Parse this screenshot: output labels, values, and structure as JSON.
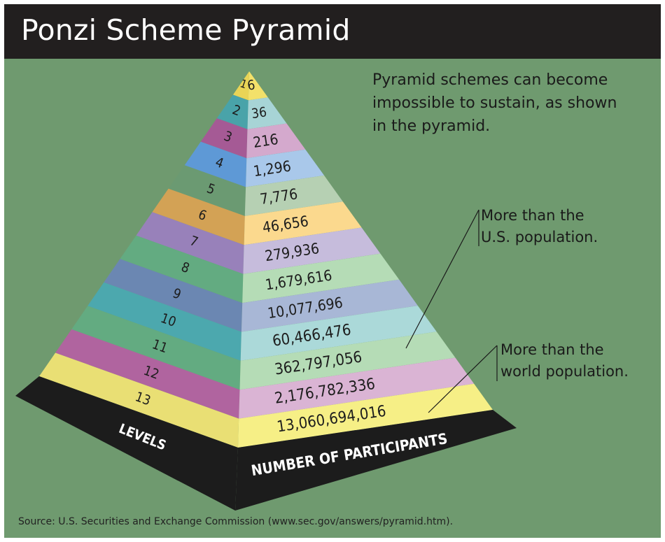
{
  "title": "Ponzi Scheme Pyramid",
  "intro_lines": [
    "Pyramid schemes can become",
    "impossible to sustain, as shown",
    "in the pyramid."
  ],
  "callouts": {
    "us_population": [
      "More than the",
      "U.S. population."
    ],
    "world_population": [
      "More than the",
      "world population."
    ]
  },
  "axis_labels": {
    "levels": "LEVELS",
    "participants": "NUMBER OF PARTICIPANTS"
  },
  "pyramid": {
    "rows": [
      {
        "level": "1",
        "participants": "6",
        "left_color": "#e9d456",
        "right_color": "#f3e16a"
      },
      {
        "level": "2",
        "participants": "36",
        "left_color": "#49a3a9",
        "right_color": "#a7d4d6"
      },
      {
        "level": "3",
        "participants": "216",
        "left_color": "#a55a95",
        "right_color": "#d4a9cd"
      },
      {
        "level": "4",
        "participants": "1,296",
        "left_color": "#5e99d6",
        "right_color": "#a9c8ea"
      },
      {
        "level": "5",
        "participants": "7,776",
        "left_color": "#6b9a72",
        "right_color": "#b6d0b3"
      },
      {
        "level": "6",
        "participants": "46,656",
        "left_color": "#d3a255",
        "right_color": "#fbd98e"
      },
      {
        "level": "7",
        "participants": "279,936",
        "left_color": "#9881ba",
        "right_color": "#c6bcdc"
      },
      {
        "level": "8",
        "participants": "1,679,616",
        "left_color": "#63ab81",
        "right_color": "#b5dcb6"
      },
      {
        "level": "9",
        "participants": "10,077,696",
        "left_color": "#6b87b2",
        "right_color": "#a8b7d6"
      },
      {
        "level": "10",
        "participants": "60,466,476",
        "left_color": "#4ca8ae",
        "right_color": "#abd9d9"
      },
      {
        "level": "11",
        "participants": "362,797,056",
        "left_color": "#63ab81",
        "right_color": "#b5dcb6"
      },
      {
        "level": "12",
        "participants": "2,176,782,336",
        "left_color": "#b0649f",
        "right_color": "#dab4d4"
      },
      {
        "level": "13",
        "participants": "13,060,694,016",
        "left_color": "#e9df74",
        "right_color": "#f6ef86"
      }
    ]
  },
  "source": "Source: U.S. Securities and Exchange Commission (www.sec.gov/answers/pyramid.htm).",
  "colors": {
    "background": "#6f9a6f",
    "title_bar": "#221f1f",
    "base": "#1c1c1c"
  }
}
